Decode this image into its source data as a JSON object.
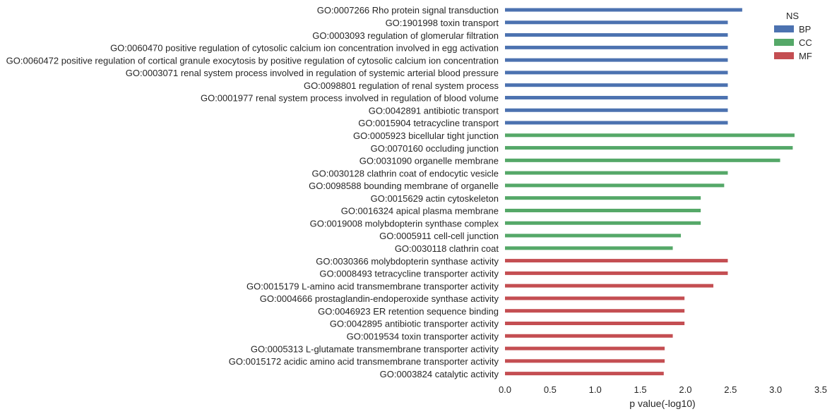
{
  "chart_data": {
    "type": "bar",
    "orientation": "horizontal",
    "xlabel": "p value(-log10)",
    "xlim": [
      0,
      3.5
    ],
    "xticks": [
      "0.0",
      "0.5",
      "1.0",
      "1.5",
      "2.0",
      "2.5",
      "3.0",
      "3.5"
    ],
    "grid": false,
    "legend": {
      "title": "NS",
      "placement": "top-right",
      "entries": [
        {
          "name": "BP",
          "color": "#4c72b0"
        },
        {
          "name": "CC",
          "color": "#55a868"
        },
        {
          "name": "MF",
          "color": "#c44e52"
        }
      ]
    },
    "categories": [
      "GO:0007266 Rho protein signal transduction",
      "GO:1901998 toxin transport",
      "GO:0003093 regulation of glomerular filtration",
      "GO:0060470 positive regulation of cytosolic calcium ion concentration involved in egg activation",
      "GO:0060472 positive regulation of cortical granule exocytosis by positive regulation of cytosolic calcium ion concentration",
      "GO:0003071 renal system process involved in regulation of systemic arterial blood pressure",
      "GO:0098801 regulation of renal system process",
      "GO:0001977 renal system process involved in regulation of blood volume",
      "GO:0042891 antibiotic transport",
      "GO:0015904 tetracycline transport",
      "GO:0005923 bicellular tight junction",
      "GO:0070160 occluding junction",
      "GO:0031090 organelle membrane",
      "GO:0030128 clathrin coat of endocytic vesicle",
      "GO:0098588 bounding membrane of organelle",
      "GO:0015629 actin cytoskeleton",
      "GO:0016324 apical plasma membrane",
      "GO:0019008 molybdopterin synthase complex",
      "GO:0005911 cell-cell junction",
      "GO:0030118 clathrin coat",
      "GO:0030366 molybdopterin synthase activity",
      "GO:0008493 tetracycline transporter activity",
      "GO:0015179 L-amino acid transmembrane transporter activity",
      "GO:0004666 prostaglandin-endoperoxide synthase activity",
      "GO:0046923 ER retention sequence binding",
      "GO:0042895 antibiotic transporter activity",
      "GO:0019534 toxin transporter activity",
      "GO:0005313 L-glutamate transmembrane transporter activity",
      "GO:0015172 acidic amino acid transmembrane transporter activity",
      "GO:0003824 catalytic activity"
    ],
    "values": [
      2.63,
      2.47,
      2.47,
      2.47,
      2.47,
      2.47,
      2.47,
      2.47,
      2.47,
      2.47,
      3.21,
      3.19,
      3.05,
      2.47,
      2.43,
      2.17,
      2.17,
      2.17,
      1.95,
      1.86,
      2.47,
      2.47,
      2.31,
      1.99,
      1.99,
      1.99,
      1.86,
      1.77,
      1.77,
      1.76
    ],
    "groups": [
      "BP",
      "BP",
      "BP",
      "BP",
      "BP",
      "BP",
      "BP",
      "BP",
      "BP",
      "BP",
      "CC",
      "CC",
      "CC",
      "CC",
      "CC",
      "CC",
      "CC",
      "CC",
      "CC",
      "CC",
      "MF",
      "MF",
      "MF",
      "MF",
      "MF",
      "MF",
      "MF",
      "MF",
      "MF",
      "MF"
    ]
  }
}
